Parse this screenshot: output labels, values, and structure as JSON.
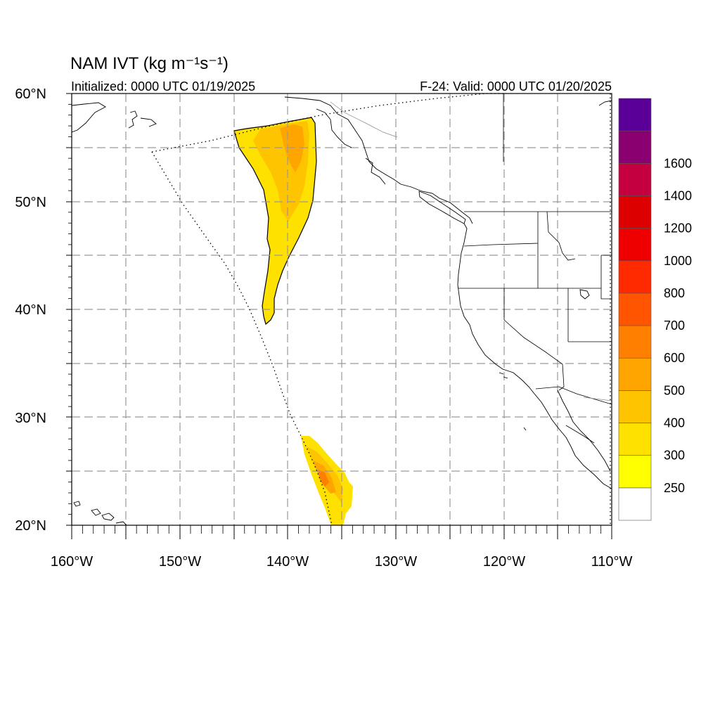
{
  "title": "NAM IVT (kg m⁻¹s⁻¹)",
  "init_label": "Initialized: 0000 UTC 01/19/2025",
  "valid_label": "F-24: Valid: 0000 UTC 01/20/2025",
  "map": {
    "projection": "cylindrical equidistant",
    "lon_range": [
      -160,
      -110
    ],
    "lat_range": [
      20,
      60
    ],
    "grid": "dashed every 5°",
    "lat_tick_labels": [
      "20°N",
      "30°N",
      "40°N",
      "50°N",
      "60°N"
    ],
    "lon_tick_labels": [
      "160°W",
      "150°W",
      "140°W",
      "130°W",
      "120°W",
      "110°W"
    ],
    "features": [
      "coastlines",
      "US state borders",
      "Canada–US border",
      "NAM domain boundary (dotted)"
    ],
    "ivt_regions": [
      {
        "name": "northern plume",
        "lat_span": [
          38.8,
          57.8
        ],
        "lon_span": [
          -145,
          -137.3
        ],
        "max_category": "400-500"
      },
      {
        "name": "southern plume",
        "lat_span": [
          20,
          28.3
        ],
        "lon_span": [
          -138,
          -134.2
        ],
        "max_category": "600-700"
      }
    ]
  },
  "colorbar": {
    "colors": [
      "#ffffff",
      "#ffff00",
      "#ffe100",
      "#ffc400",
      "#ffa500",
      "#ff7f00",
      "#ff5500",
      "#ff2a00",
      "#ee0000",
      "#dd0000",
      "#c50040",
      "#8b0070",
      "#5a0099"
    ],
    "labels": [
      "250",
      "300",
      "400",
      "500",
      "600",
      "700",
      "800",
      "1000",
      "1200",
      "1400",
      "1600"
    ]
  }
}
